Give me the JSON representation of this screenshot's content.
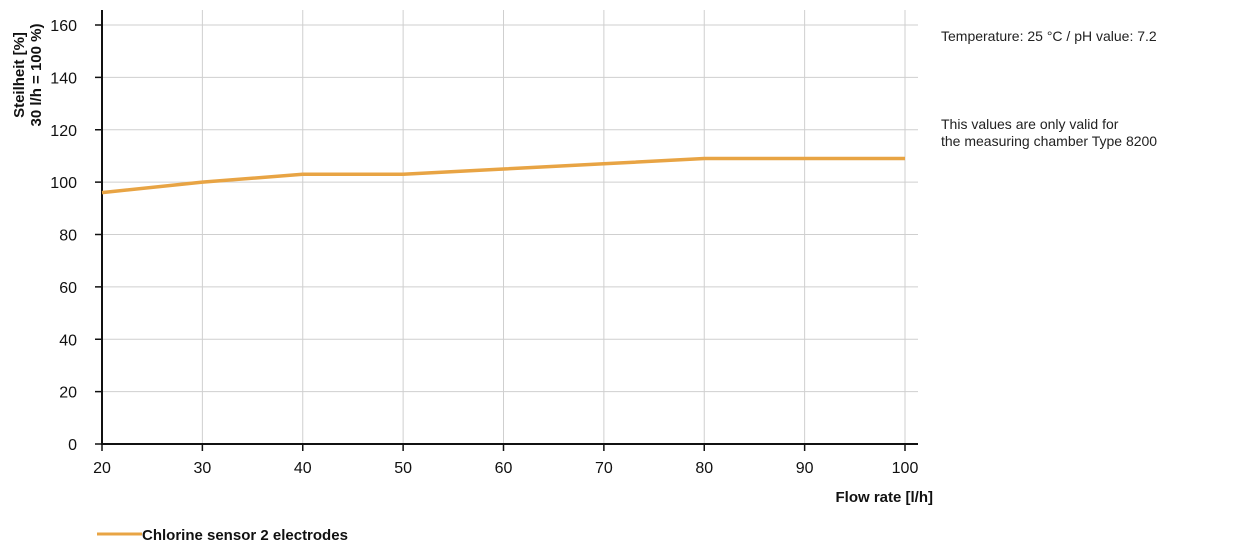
{
  "chart_data": {
    "type": "line",
    "title": "",
    "xlabel": "Flow rate [l/h]",
    "ylabel": [
      "Steilheit [%]",
      "30 l/h = 100 %)"
    ],
    "xlim": [
      20,
      100
    ],
    "ylim": [
      0,
      160
    ],
    "xticks": [
      20,
      30,
      40,
      50,
      60,
      70,
      80,
      90,
      100
    ],
    "yticks": [
      0,
      20,
      40,
      60,
      80,
      100,
      120,
      140,
      160
    ],
    "grid": true,
    "legend_position": "bottom-left",
    "series": [
      {
        "name": "Chlorine sensor 2 electrodes",
        "color": "#e8a444",
        "x": [
          20,
          30,
          40,
          50,
          60,
          70,
          80,
          90,
          100
        ],
        "y": [
          96,
          100,
          103,
          103,
          105,
          107,
          109,
          109,
          109
        ]
      }
    ]
  },
  "notes": {
    "conditions": "Temperature: 25 °C / pH value: 7.2",
    "validity_line1": "This values are only valid for",
    "validity_line2": "the measuring chamber Type 8200"
  },
  "colors": {
    "grid": "#cfcfcf",
    "axis": "#111111"
  }
}
